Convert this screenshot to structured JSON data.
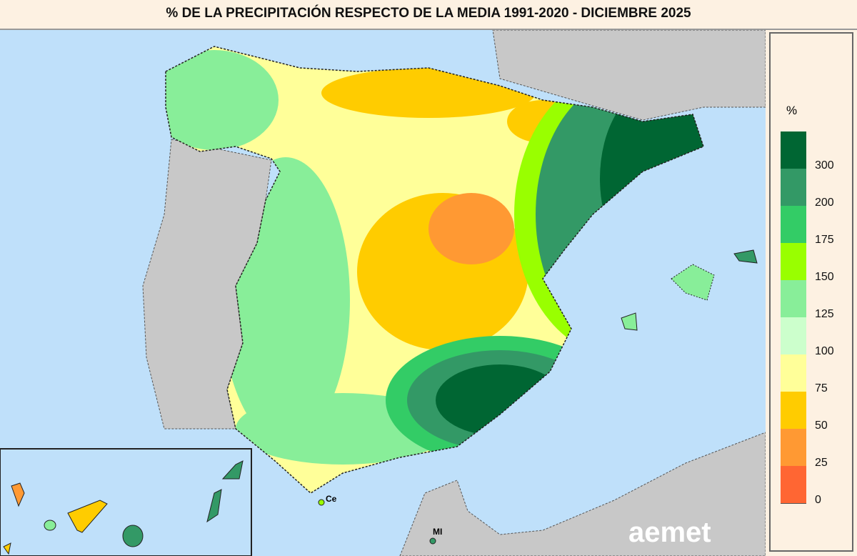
{
  "title": "% DE LA PRECIPITACIÓN RESPECTO DE LA MEDIA 1991-2020 - DICIEMBRE 2025",
  "legend": {
    "unit": "%",
    "classes": [
      {
        "label": "300",
        "color": "#006633"
      },
      {
        "label": "200",
        "color": "#339966"
      },
      {
        "label": "175",
        "color": "#33cc66"
      },
      {
        "label": "150",
        "color": "#99ff00"
      },
      {
        "label": "125",
        "color": "#88ee99"
      },
      {
        "label": "100",
        "color": "#ccffcc"
      },
      {
        "label": "75",
        "color": "#ffff99"
      },
      {
        "label": "50",
        "color": "#ffcc00"
      },
      {
        "label": "25",
        "color": "#ff9933"
      },
      {
        "label": "0",
        "color": "#ff6633"
      }
    ]
  },
  "map": {
    "sea_color": "#bfe0fa",
    "land_color": "#c8c8c8",
    "labels": {
      "ceuta": "Ce",
      "melilla": "MI"
    },
    "logo": "aemet"
  }
}
